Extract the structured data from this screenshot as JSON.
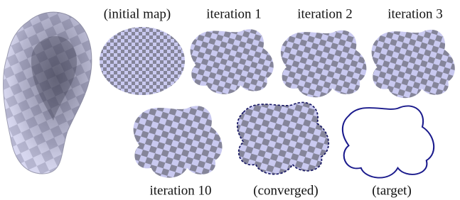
{
  "panels": [
    {
      "label": "(initial map)"
    },
    {
      "label": "iteration 1"
    },
    {
      "label": "iteration 2"
    },
    {
      "label": "iteration 3"
    },
    {
      "label": "iteration 10"
    },
    {
      "label": "(converged)"
    },
    {
      "label": "(target)"
    }
  ]
}
